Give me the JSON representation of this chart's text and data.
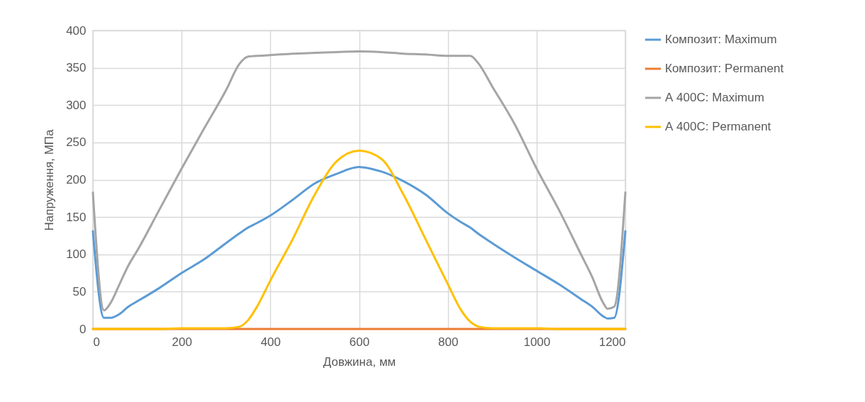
{
  "chart_data": {
    "type": "line",
    "xlabel": "Довжина, мм",
    "ylabel": "Напруження, МПа",
    "x": [
      0,
      25,
      40,
      60,
      80,
      100,
      150,
      200,
      250,
      300,
      330,
      350,
      370,
      400,
      450,
      500,
      550,
      600,
      650,
      700,
      750,
      800,
      830,
      850,
      870,
      900,
      950,
      1000,
      1050,
      1100,
      1125,
      1150,
      1160,
      1175,
      1200
    ],
    "series": [
      {
        "name": "Композит: Maximum",
        "color": "#5b9bd5",
        "values": [
          131,
          15,
          15,
          20,
          30,
          37,
          55,
          75,
          93,
          115,
          128,
          136,
          142,
          152,
          173,
          195,
          208,
          217,
          211,
          198,
          180,
          155,
          143,
          136,
          127,
          115,
          96,
          78,
          60,
          40,
          30,
          17,
          14,
          15,
          131
        ]
      },
      {
        "name": "Композит: Permanent",
        "color": "#ed7d31",
        "values": [
          0,
          0,
          0,
          0,
          0,
          0,
          0,
          0,
          0,
          0,
          0,
          0,
          0,
          0,
          0,
          0,
          0,
          0,
          0,
          0,
          0,
          0,
          0,
          0,
          0,
          0,
          0,
          0,
          0,
          0,
          0,
          0,
          0,
          0,
          0
        ]
      },
      {
        "name": "А 400С: Maximum",
        "color": "#a5a5a5",
        "values": [
          183,
          25,
          35,
          60,
          85,
          105,
          160,
          215,
          268,
          320,
          355,
          365,
          366,
          367,
          369,
          370,
          371,
          372,
          371,
          369,
          368,
          366,
          366,
          366,
          355,
          325,
          275,
          215,
          160,
          100,
          70,
          35,
          27,
          30,
          183
        ]
      },
      {
        "name": "А 400С: Permanent",
        "color": "#ffc000",
        "values": [
          0,
          0,
          0,
          0,
          0,
          0,
          0,
          1,
          1,
          1,
          3,
          12,
          30,
          65,
          120,
          180,
          225,
          239,
          228,
          180,
          120,
          60,
          25,
          10,
          3,
          1,
          1,
          1,
          0,
          0,
          0,
          0,
          0,
          0,
          0
        ]
      }
    ],
    "xlim": [
      0,
      1200
    ],
    "xticks": [
      0,
      200,
      400,
      600,
      800,
      1000,
      1200
    ],
    "ylim": [
      0,
      400
    ],
    "yticks": [
      0,
      50,
      100,
      150,
      200,
      250,
      300,
      350,
      400
    ],
    "grid": true,
    "legend": "right",
    "marker": "none",
    "line_style": "solid"
  }
}
